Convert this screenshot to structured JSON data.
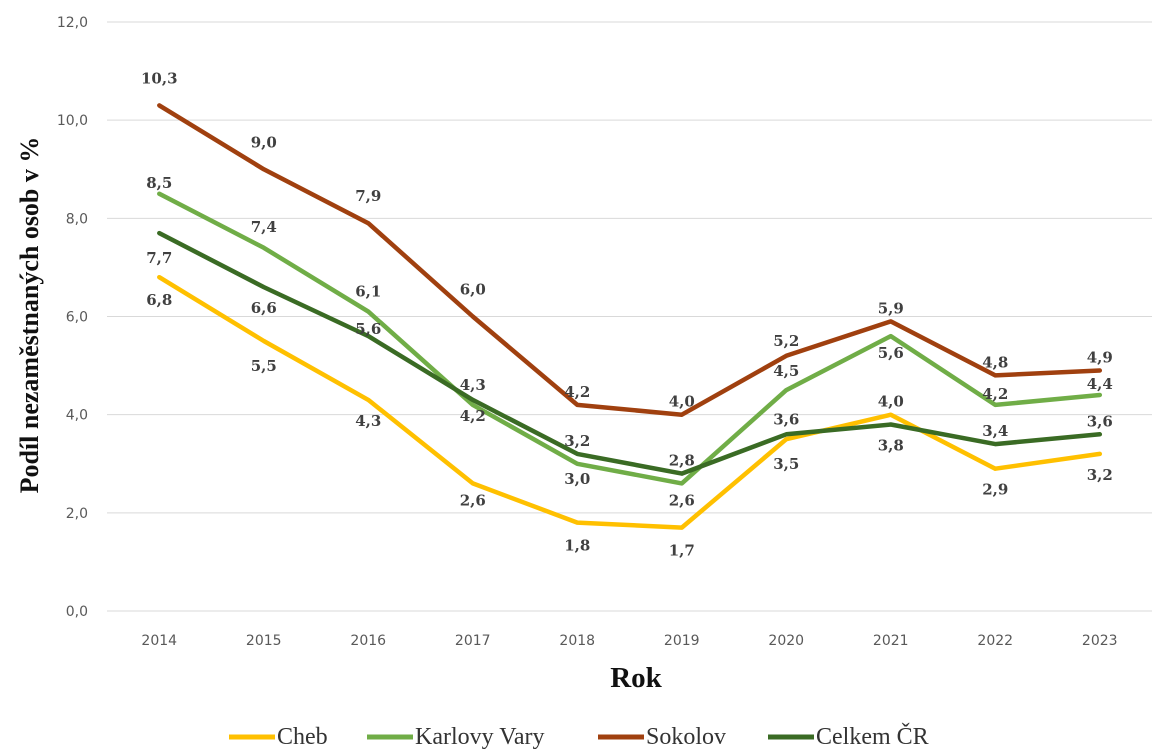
{
  "chart_data": {
    "type": "line",
    "title": "",
    "xlabel": "Rok",
    "ylabel": "Podíl nezaměstnaných osob v %",
    "ylim": [
      0,
      12
    ],
    "yticks": [
      "0,0",
      "2,0",
      "4,0",
      "6,0",
      "8,0",
      "10,0",
      "12,0"
    ],
    "grid": "horizontal",
    "legend_position": "bottom",
    "categories": [
      "2014",
      "2015",
      "2016",
      "2017",
      "2018",
      "2019",
      "2020",
      "2021",
      "2022",
      "2023"
    ],
    "series": [
      {
        "name": "Cheb",
        "color": "#FFC000",
        "values": [
          6.8,
          5.5,
          4.3,
          2.6,
          1.8,
          1.7,
          3.5,
          4.0,
          2.9,
          3.2
        ],
        "labels": [
          "6,8",
          "5,5",
          "4,3",
          "2,6",
          "1,8",
          "1,7",
          "3,5",
          "4,0",
          "2,9",
          "3,2"
        ]
      },
      {
        "name": "Karlovy Vary",
        "color": "#70AD47",
        "values": [
          8.5,
          7.4,
          6.1,
          4.2,
          3.0,
          2.6,
          4.5,
          5.6,
          4.2,
          4.4
        ],
        "labels": [
          "8,5",
          "7,4",
          "6,1",
          "4,2",
          "3,0",
          "2,6",
          "4,5",
          "5,6",
          "4,2",
          "4,4"
        ]
      },
      {
        "name": "Sokolov",
        "color": "#A0400F",
        "values": [
          10.3,
          9.0,
          7.9,
          6.0,
          4.2,
          4.0,
          5.2,
          5.9,
          4.8,
          4.9
        ],
        "labels": [
          "10,3",
          "9,0",
          "7,9",
          "6,0",
          "4,2",
          "4,0",
          "5,2",
          "5,9",
          "4,8",
          "4,9"
        ]
      },
      {
        "name": "Celkem ČR",
        "color": "#3A6B24",
        "values": [
          7.7,
          6.6,
          5.6,
          4.3,
          3.2,
          2.8,
          3.6,
          3.8,
          3.4,
          3.6
        ],
        "labels": [
          "7,7",
          "6,6",
          "5,6",
          "4,3",
          "3,2",
          "2,8",
          "3,6",
          "3,8",
          "3,4",
          "3,6"
        ]
      }
    ]
  }
}
